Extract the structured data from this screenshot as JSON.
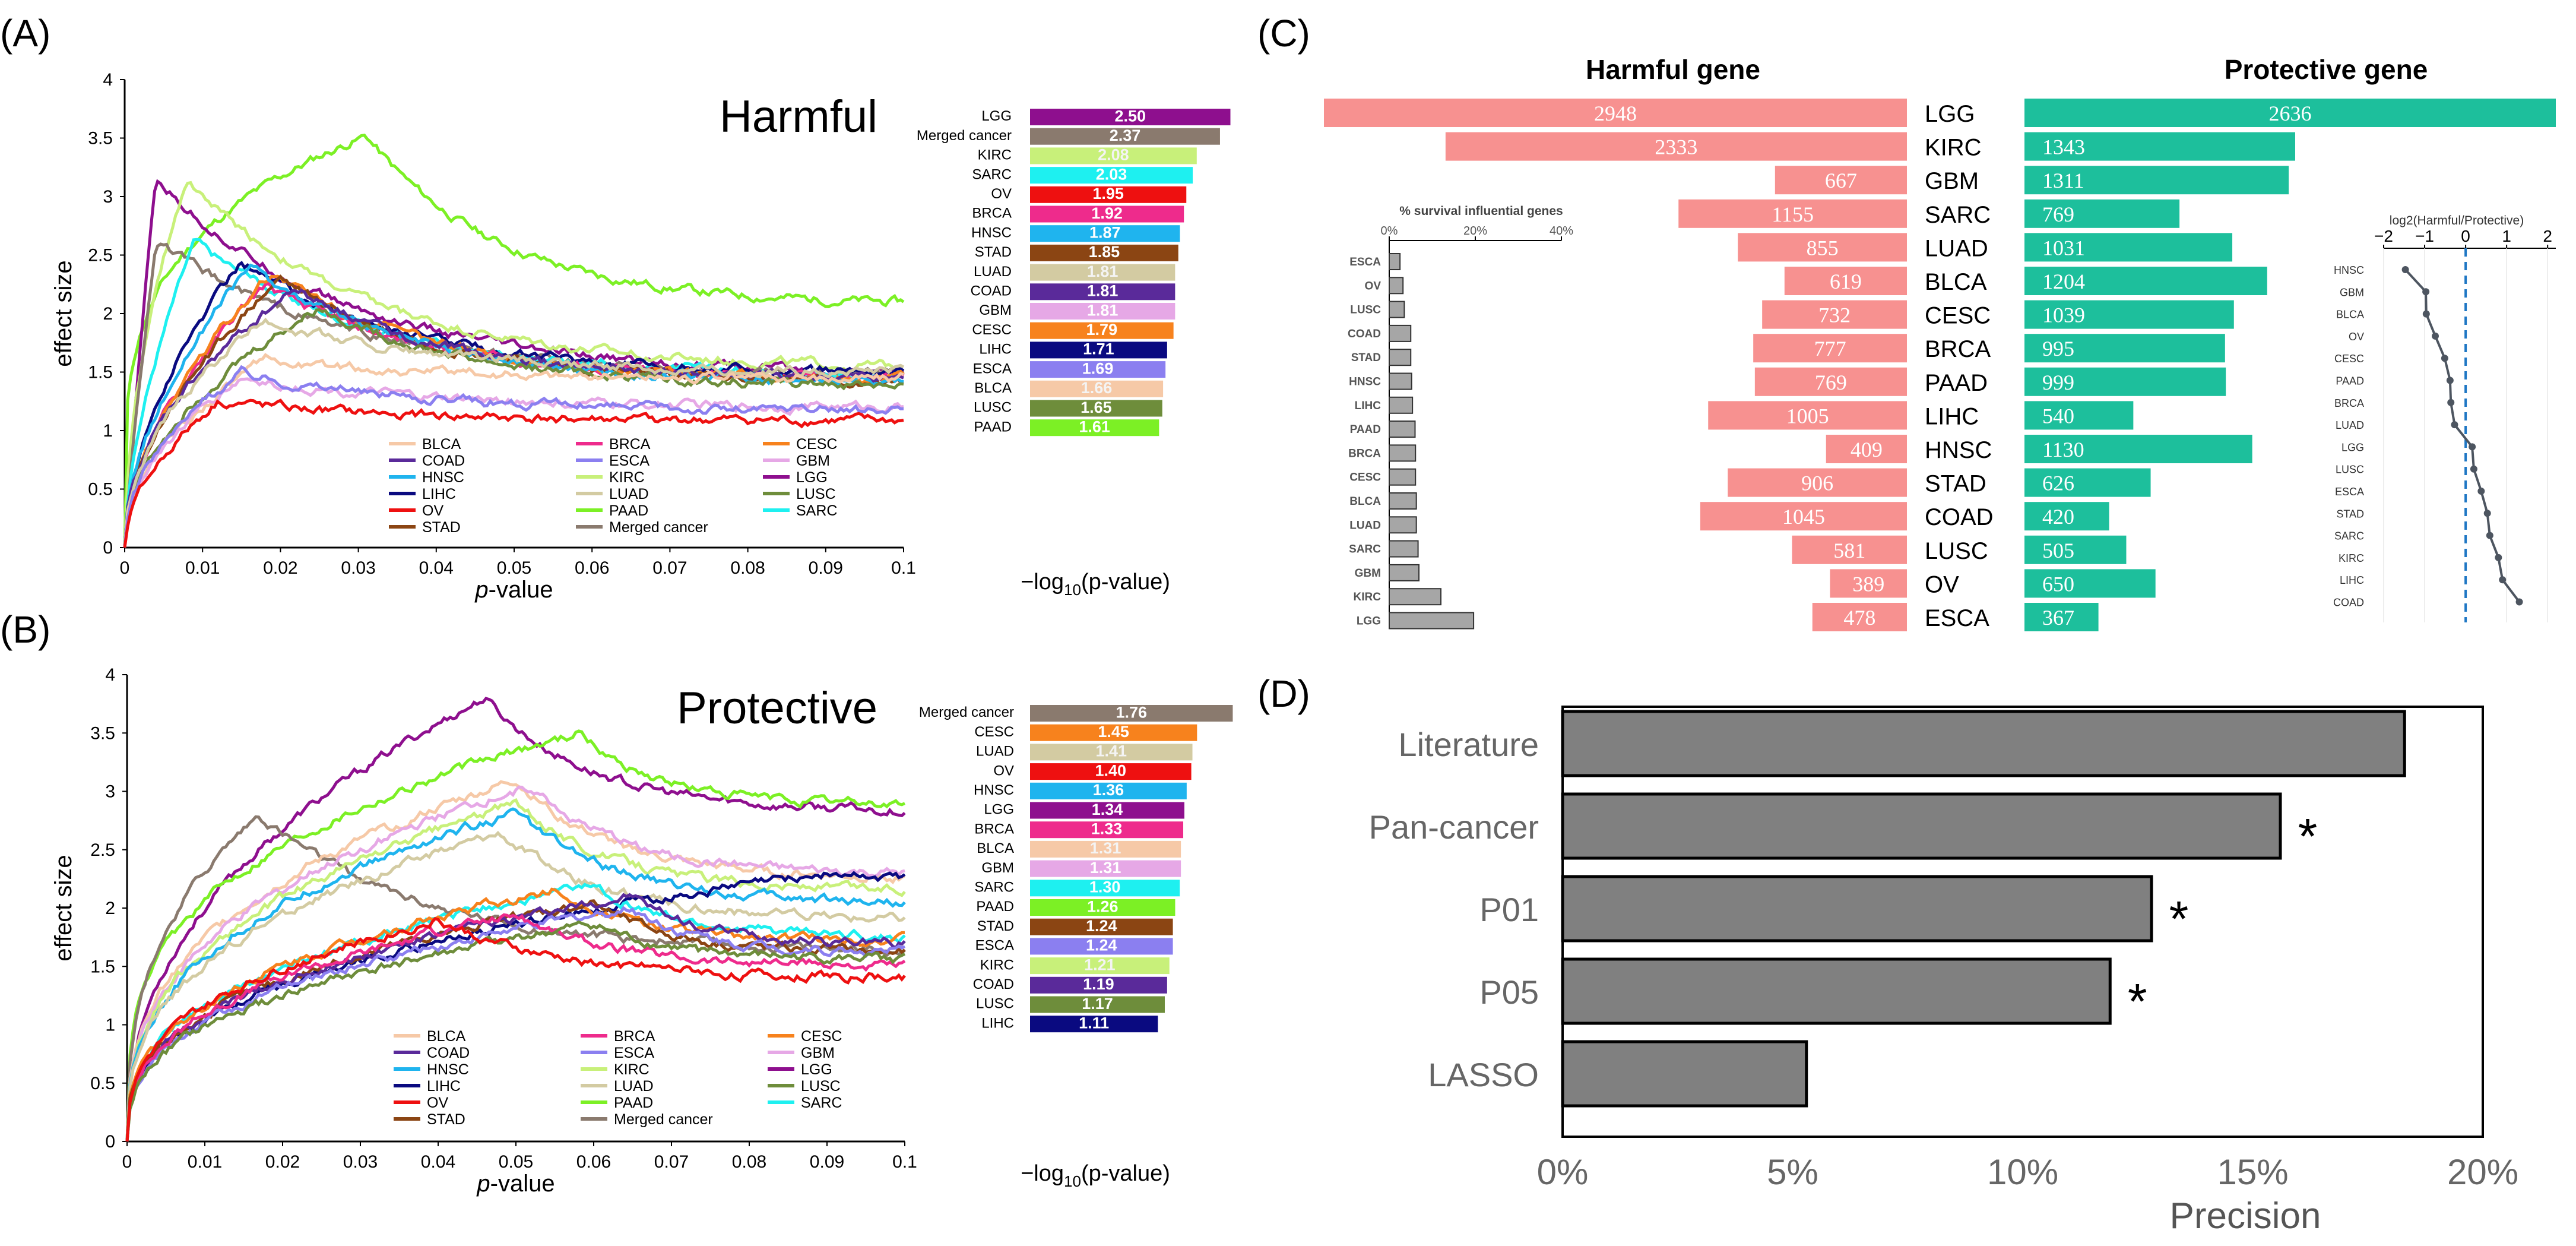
{
  "panels": {
    "A": "(A)",
    "B": "(B)",
    "C": "(C)",
    "D": "(D)"
  },
  "legend_names": [
    "BLCA",
    "BRCA",
    "CESC",
    "COAD",
    "ESCA",
    "GBM",
    "HNSC",
    "KIRC",
    "LGG",
    "LIHC",
    "LUAD",
    "LUSC",
    "OV",
    "PAAD",
    "SARC",
    "STAD",
    "Merged cancer"
  ],
  "colors": {
    "BLCA": "#f6c9a7",
    "BRCA": "#ee2b8c",
    "CESC": "#f7821d",
    "COAD": "#5a2a9a",
    "ESCA": "#8b7ff0",
    "GBM": "#e6a8e6",
    "HNSC": "#1fb4ee",
    "KIRC": "#c8f07a",
    "LGG": "#8e0f8e",
    "LIHC": "#0a0a80",
    "LUAD": "#d3cba2",
    "LUSC": "#6e8d3b",
    "OV": "#ee1010",
    "PAAD": "#7cf025",
    "SARC": "#1ef0f0",
    "STAD": "#8b4513",
    "Merged cancer": "#8a7a6e"
  },
  "chart_data": [
    {
      "id": "A_line",
      "type": "line",
      "title": "Harmful",
      "xlabel_prefix": "p",
      "xlabel_suffix": "-value",
      "ylabel": "effect size",
      "xlim": [
        0,
        0.1
      ],
      "ylim": [
        0,
        4
      ],
      "xticks": [
        "0",
        "0.01",
        "0.02",
        "0.03",
        "0.04",
        "0.05",
        "0.06",
        "0.07",
        "0.08",
        "0.09",
        "0.1"
      ],
      "yticks": [
        "0",
        "0.5",
        "1",
        "1.5",
        "2",
        "2.5",
        "3",
        "3.5",
        "4"
      ],
      "series": [
        {
          "name": "PAAD",
          "peak_x": 0.031,
          "peak": 3.52,
          "end": 2.07,
          "rise": 0.4
        },
        {
          "name": "LGG",
          "peak_x": 0.004,
          "peak": 3.15,
          "end": 1.47,
          "rise": 1.5
        },
        {
          "name": "KIRC",
          "peak_x": 0.008,
          "peak": 3.15,
          "end": 1.52,
          "rise": 0.9
        },
        {
          "name": "Merged cancer",
          "peak_x": 0.004,
          "peak": 2.62,
          "end": 1.45,
          "rise": 1.4
        },
        {
          "name": "SARC",
          "peak_x": 0.009,
          "peak": 2.62,
          "end": 1.45,
          "rise": 1.0
        },
        {
          "name": "LIHC",
          "peak_x": 0.015,
          "peak": 2.45,
          "end": 1.48,
          "rise": 0.9
        },
        {
          "name": "BRCA",
          "peak_x": 0.018,
          "peak": 2.25,
          "end": 1.43,
          "rise": 0.9
        },
        {
          "name": "CESC",
          "peak_x": 0.019,
          "peak": 2.35,
          "end": 1.42,
          "rise": 0.9
        },
        {
          "name": "STAD",
          "peak_x": 0.02,
          "peak": 2.3,
          "end": 1.4,
          "rise": 0.9
        },
        {
          "name": "HNSC",
          "peak_x": 0.016,
          "peak": 2.4,
          "end": 1.4,
          "rise": 0.9
        },
        {
          "name": "COAD",
          "peak_x": 0.022,
          "peak": 2.22,
          "end": 1.42,
          "rise": 0.8
        },
        {
          "name": "LUSC",
          "peak_x": 0.025,
          "peak": 2.05,
          "end": 1.38,
          "rise": 0.8
        },
        {
          "name": "LUAD",
          "peak_x": 0.018,
          "peak": 1.95,
          "end": 1.5,
          "rise": 0.8
        },
        {
          "name": "BLCA",
          "peak_x": 0.018,
          "peak": 1.6,
          "end": 1.45,
          "rise": 0.8
        },
        {
          "name": "GBM",
          "peak_x": 0.015,
          "peak": 1.45,
          "end": 1.2,
          "rise": 0.8
        },
        {
          "name": "ESCA",
          "peak_x": 0.015,
          "peak": 1.5,
          "end": 1.17,
          "rise": 0.8
        },
        {
          "name": "OV",
          "peak_x": 0.012,
          "peak": 1.25,
          "end": 1.08,
          "rise": 0.9
        }
      ]
    },
    {
      "id": "A_bar",
      "type": "bar",
      "xlabel_main": "−log",
      "xlabel_sub": "10",
      "xlabel_tail": "(p-value)",
      "categories": [
        "LGG",
        "Merged cancer",
        "KIRC",
        "SARC",
        "OV",
        "BRCA",
        "HNSC",
        "STAD",
        "LUAD",
        "COAD",
        "GBM",
        "CESC",
        "LIHC",
        "ESCA",
        "BLCA",
        "LUSC",
        "PAAD"
      ],
      "values": [
        2.5,
        2.37,
        2.08,
        2.03,
        1.95,
        1.92,
        1.87,
        1.85,
        1.81,
        1.81,
        1.81,
        1.79,
        1.71,
        1.69,
        1.66,
        1.65,
        1.61
      ],
      "labels": [
        "2.50",
        "2.37",
        "2.08",
        "2.03",
        "1.95",
        "1.92",
        "1.87",
        "1.85",
        "1.81",
        "1.81",
        "1.81",
        "1.79",
        "1.71",
        "1.69",
        "1.66",
        "1.65",
        "1.61"
      ]
    },
    {
      "id": "B_line",
      "type": "line",
      "title": "Protective",
      "xlabel_prefix": "p",
      "xlabel_suffix": "-value",
      "ylabel": "effect size",
      "xlim": [
        0,
        0.1
      ],
      "ylim": [
        0,
        4
      ],
      "xticks": [
        "0",
        "0.01",
        "0.02",
        "0.03",
        "0.04",
        "0.05",
        "0.06",
        "0.07",
        "0.08",
        "0.09",
        "0.1"
      ],
      "yticks": [
        "0",
        "0.5",
        "1",
        "1.5",
        "2",
        "2.5",
        "3",
        "3.5",
        "4"
      ],
      "series": [
        {
          "name": "LGG",
          "peak_x": 0.046,
          "peak": 3.8,
          "end": 2.82,
          "rise": 0.7
        },
        {
          "name": "PAAD",
          "peak_x": 0.058,
          "peak": 3.5,
          "end": 2.88,
          "rise": 0.5
        },
        {
          "name": "Merged cancer",
          "peak_x": 0.017,
          "peak": 2.8,
          "end": 1.62,
          "rise": 0.6
        },
        {
          "name": "BLCA",
          "peak_x": 0.05,
          "peak": 3.1,
          "end": 2.25,
          "rise": 0.6
        },
        {
          "name": "GBM",
          "peak_x": 0.052,
          "peak": 3.05,
          "end": 2.28,
          "rise": 0.6
        },
        {
          "name": "KIRC",
          "peak_x": 0.05,
          "peak": 2.9,
          "end": 2.15,
          "rise": 0.6
        },
        {
          "name": "HNSC",
          "peak_x": 0.05,
          "peak": 2.82,
          "end": 2.05,
          "rise": 0.6
        },
        {
          "name": "LUAD",
          "peak_x": 0.048,
          "peak": 2.65,
          "end": 1.9,
          "rise": 0.6
        },
        {
          "name": "LIHC",
          "peak_x": 0.09,
          "peak": 2.3,
          "end": 2.27,
          "rise": 0.6
        },
        {
          "name": "SARC",
          "peak_x": 0.06,
          "peak": 2.2,
          "end": 1.75,
          "rise": 0.6
        },
        {
          "name": "CESC",
          "peak_x": 0.055,
          "peak": 2.15,
          "end": 1.72,
          "rise": 0.6
        },
        {
          "name": "STAD",
          "peak_x": 0.06,
          "peak": 2.05,
          "end": 1.62,
          "rise": 0.6
        },
        {
          "name": "COAD",
          "peak_x": 0.065,
          "peak": 2.1,
          "end": 1.7,
          "rise": 0.6
        },
        {
          "name": "ESCA",
          "peak_x": 0.065,
          "peak": 2.0,
          "end": 1.62,
          "rise": 0.6
        },
        {
          "name": "BRCA",
          "peak_x": 0.05,
          "peak": 1.95,
          "end": 1.5,
          "rise": 0.6
        },
        {
          "name": "LUSC",
          "peak_x": 0.06,
          "peak": 1.85,
          "end": 1.55,
          "rise": 0.6
        },
        {
          "name": "OV",
          "peak_x": 0.04,
          "peak": 1.9,
          "end": 1.4,
          "rise": 0.6
        }
      ]
    },
    {
      "id": "B_bar",
      "type": "bar",
      "xlabel_main": "−log",
      "xlabel_sub": "10",
      "xlabel_tail": "(p-value)",
      "categories": [
        "Merged cancer",
        "CESC",
        "LUAD",
        "OV",
        "HNSC",
        "LGG",
        "BRCA",
        "BLCA",
        "GBM",
        "SARC",
        "PAAD",
        "STAD",
        "ESCA",
        "KIRC",
        "COAD",
        "LUSC",
        "LIHC"
      ],
      "values": [
        1.76,
        1.45,
        1.41,
        1.4,
        1.36,
        1.34,
        1.33,
        1.31,
        1.31,
        1.3,
        1.26,
        1.24,
        1.24,
        1.21,
        1.19,
        1.17,
        1.11
      ],
      "labels": [
        "1.76",
        "1.45",
        "1.41",
        "1.40",
        "1.36",
        "1.34",
        "1.33",
        "1.31",
        "1.31",
        "1.30",
        "1.26",
        "1.24",
        "1.24",
        "1.21",
        "1.19",
        "1.17",
        "1.11"
      ]
    },
    {
      "id": "C_diverging",
      "type": "bar",
      "title_left": "Harmful gene",
      "title_right": "Protective gene",
      "categories": [
        "LGG",
        "KIRC",
        "GBM",
        "SARC",
        "LUAD",
        "BLCA",
        "CESC",
        "BRCA",
        "PAAD",
        "LIHC",
        "HNSC",
        "STAD",
        "COAD",
        "LUSC",
        "OV",
        "ESCA"
      ],
      "harmful": [
        2948,
        2333,
        667,
        1155,
        855,
        619,
        732,
        777,
        769,
        1005,
        409,
        906,
        1045,
        581,
        389,
        478
      ],
      "protective": [
        2636,
        1343,
        1311,
        769,
        1031,
        1204,
        1039,
        995,
        999,
        540,
        1130,
        626,
        420,
        505,
        650,
        367
      ]
    },
    {
      "id": "C_inset_bar",
      "type": "bar",
      "title": "% survival influential genes",
      "xticks": [
        "0%",
        "20%",
        "40%"
      ],
      "xlim": [
        0,
        40
      ],
      "categories": [
        "ESCA",
        "OV",
        "LUSC",
        "COAD",
        "STAD",
        "HNSC",
        "LIHC",
        "PAAD",
        "BRCA",
        "CESC",
        "BLCA",
        "LUAD",
        "SARC",
        "GBM",
        "KIRC",
        "LGG"
      ],
      "values": [
        2.5,
        3.2,
        3.5,
        5.0,
        5.0,
        5.2,
        5.4,
        6.0,
        6.1,
        6.1,
        6.3,
        6.3,
        6.7,
        6.9,
        12.0,
        19.6
      ]
    },
    {
      "id": "C_inset_line",
      "type": "line",
      "title": "log2(Harmful/Protective)",
      "xticks": [
        "−2",
        "−1",
        "0",
        "1",
        "2"
      ],
      "xlim": [
        -2,
        2.2
      ],
      "categories": [
        "HNSC",
        "GBM",
        "BLCA",
        "OV",
        "CESC",
        "PAAD",
        "BRCA",
        "LUAD",
        "LGG",
        "LUSC",
        "ESCA",
        "STAD",
        "SARC",
        "KIRC",
        "LIHC",
        "COAD"
      ],
      "values": [
        -1.47,
        -0.97,
        -0.96,
        -0.74,
        -0.51,
        -0.38,
        -0.36,
        -0.27,
        0.16,
        0.2,
        0.38,
        0.53,
        0.59,
        0.8,
        0.9,
        1.31
      ]
    },
    {
      "id": "D_bar",
      "type": "bar",
      "xlabel": "Precision",
      "xticks": [
        "0%",
        "5%",
        "10%",
        "15%",
        "20%"
      ],
      "xlim": [
        0,
        20
      ],
      "categories": [
        "Literature",
        "Pan-cancer",
        "P01",
        "P05",
        "LASSO"
      ],
      "values": [
        18.3,
        15.6,
        12.8,
        11.9,
        5.3
      ],
      "marks": [
        "",
        "*",
        "*",
        "*",
        ""
      ]
    }
  ]
}
